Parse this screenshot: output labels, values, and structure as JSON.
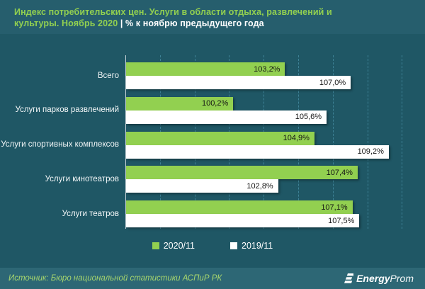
{
  "header": {
    "title_line1": "Индекс потребительских цен. Услуги в области отдыха, развлечений и",
    "title_line2_green": "культуры. Ноябрь 2020",
    "title_line2_white": "| % к ноябрю предыдущего года"
  },
  "chart_data": {
    "type": "bar",
    "orientation": "horizontal",
    "title": "Индекс потребительских цен. Услуги в области отдыха, развлечений и культуры. Ноябрь 2020, % к ноябрю предыдущего года",
    "categories": [
      "Всего",
      "Услуги парков развлечений",
      "Услуги спортивных комплексов",
      "Услуги кинотеатров",
      "Услуги театров"
    ],
    "series": [
      {
        "name": "2020/11",
        "color": "#92D050",
        "values": [
          103.2,
          100.2,
          104.9,
          107.4,
          107.1
        ],
        "labels": [
          "103,2%",
          "100,2%",
          "104,9%",
          "107,4%",
          "107,1%"
        ]
      },
      {
        "name": "2019/11",
        "color": "#FFFFFF",
        "values": [
          107.0,
          105.6,
          109.2,
          102.8,
          107.5
        ],
        "labels": [
          "107,0%",
          "105,6%",
          "109,2%",
          "102,8%",
          "107,5%"
        ]
      }
    ],
    "axis": {
      "min": 94,
      "max": 110.8,
      "grid_start": 96,
      "grid_step": 2,
      "grid_end": 110
    },
    "grid": "dashed-vertical",
    "legend_position": "bottom-center"
  },
  "footer": {
    "source": "Источник: Бюро национальной статистики АСПиР РК",
    "logo_bold": "Energy",
    "logo_light": "Prom"
  },
  "colors": {
    "header_bg": "#265E6D",
    "body_bg": "#1F5765",
    "footer_bg": "#2D6775",
    "bar_green": "#92D050",
    "bar_white": "#FFFFFF",
    "gridline": "#3E8296",
    "title_green": "#92D050",
    "footer_text": "#A6D56E"
  }
}
